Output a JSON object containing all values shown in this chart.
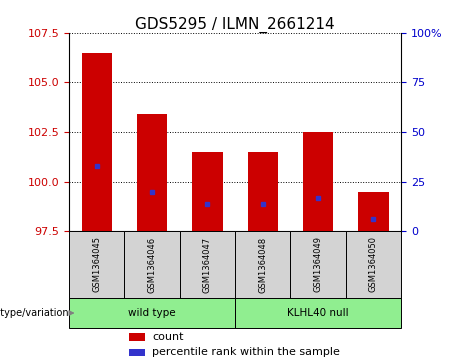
{
  "title": "GDS5295 / ILMN_2661214",
  "samples": [
    "GSM1364045",
    "GSM1364046",
    "GSM1364047",
    "GSM1364048",
    "GSM1364049",
    "GSM1364050"
  ],
  "bar_tops": [
    106.5,
    103.4,
    101.5,
    101.5,
    102.5,
    99.5
  ],
  "bar_bottoms": [
    97.5,
    97.5,
    97.5,
    97.5,
    97.5,
    97.5
  ],
  "blue_positions": [
    100.8,
    99.5,
    98.9,
    98.9,
    99.2,
    98.1
  ],
  "ylim": [
    97.5,
    107.5
  ],
  "yticks_left": [
    97.5,
    100.0,
    102.5,
    105.0,
    107.5
  ],
  "yticks_right_labels": [
    "0",
    "25",
    "50",
    "75",
    "100%"
  ],
  "yticks_right_vals": [
    97.5,
    100.0,
    102.5,
    105.0,
    107.5
  ],
  "bar_color": "#cc0000",
  "blue_color": "#3333cc",
  "group_label": "genotype/variation",
  "group1_label": "wild type",
  "group2_label": "KLHL40 null",
  "legend_count": "count",
  "legend_pct": "percentile rank within the sample",
  "bar_width": 0.55,
  "background_color": "#ffffff",
  "tick_label_color_left": "#cc0000",
  "tick_label_color_right": "#0000cc",
  "title_fontsize": 11,
  "tick_fontsize": 8,
  "label_fontsize": 7,
  "legend_fontsize": 8
}
